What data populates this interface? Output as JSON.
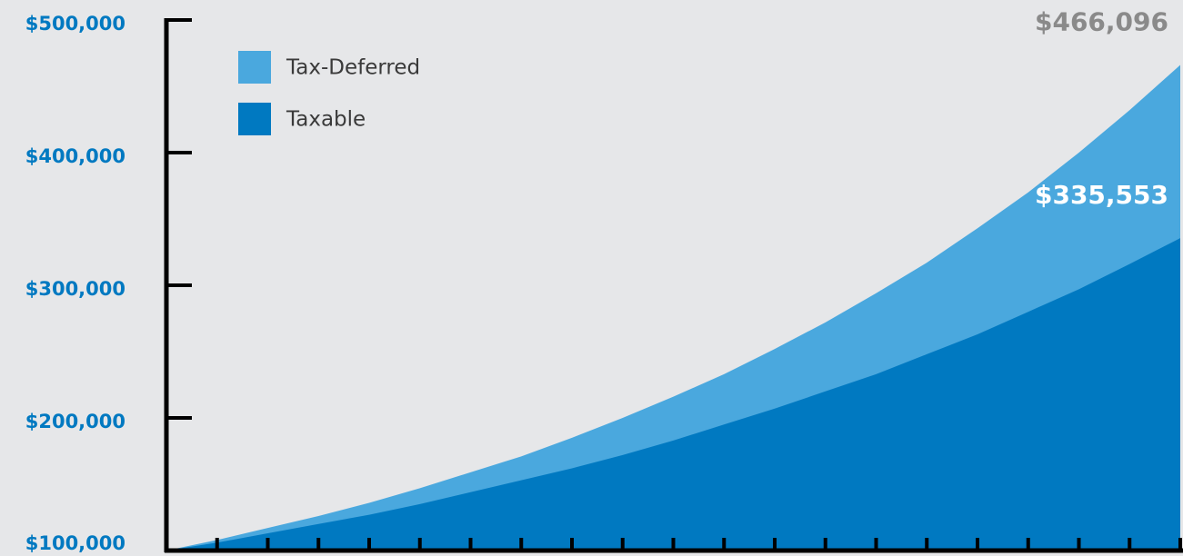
{
  "chart_data": {
    "type": "area",
    "categories": [
      null,
      null,
      null,
      null,
      null,
      null,
      null,
      null,
      null,
      null,
      null,
      null,
      null,
      null,
      null,
      null,
      null,
      null,
      null,
      null,
      null
    ],
    "series": [
      {
        "name": "Tax-Deferred",
        "color": "#4aa8de",
        "values": [
          100000,
          108000,
          117000,
          126000,
          136000,
          147000,
          159000,
          171000,
          185000,
          200000,
          216000,
          233000,
          252000,
          272000,
          294000,
          317000,
          343000,
          370000,
          400000,
          432000,
          466096
        ],
        "value_labels": [
          null,
          null,
          null,
          null,
          null,
          null,
          null,
          null,
          null,
          null,
          null,
          null,
          null,
          null,
          null,
          null,
          null,
          null,
          null,
          null,
          "$466,096"
        ]
      },
      {
        "name": "Taxable",
        "color": "#0079c1",
        "values": [
          100000,
          106000,
          113000,
          120000,
          127000,
          135000,
          144000,
          153000,
          162000,
          172000,
          183000,
          195000,
          207000,
          220000,
          233000,
          248000,
          263000,
          280000,
          297000,
          316000,
          335553
        ],
        "value_labels": [
          null,
          null,
          null,
          null,
          null,
          null,
          null,
          null,
          null,
          null,
          null,
          null,
          null,
          null,
          null,
          null,
          null,
          null,
          null,
          null,
          "$335,553"
        ]
      }
    ],
    "ylim": [
      100000,
      500000
    ],
    "yticks": [
      {
        "value": 100000,
        "label": "$100,000"
      },
      {
        "value": 200000,
        "label": "$200,000"
      },
      {
        "value": 300000,
        "label": "$300,000"
      },
      {
        "value": 400000,
        "label": "$400,000"
      },
      {
        "value": 500000,
        "label": "$500,000"
      }
    ],
    "legend": "top-left"
  }
}
